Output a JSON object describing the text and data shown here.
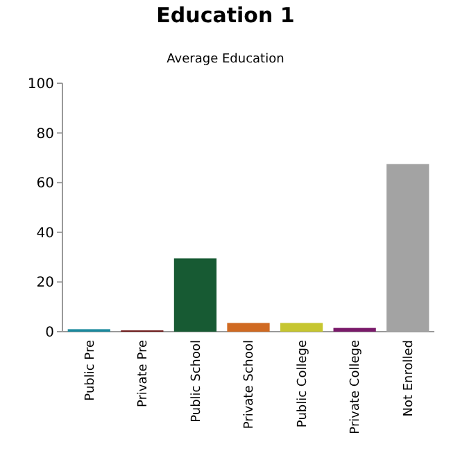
{
  "chart_data": {
    "type": "bar",
    "title": "Education 1",
    "subtitle": "Average Education",
    "categories": [
      "Public Pre",
      "Private Pre",
      "Public School",
      "Private School",
      "Public College",
      "Private College",
      "Not Enrolled"
    ],
    "values": [
      1,
      0.5,
      29.5,
      3.5,
      3.5,
      1.5,
      67.5
    ],
    "colors": [
      "#1a8a9e",
      "#6b0f0f",
      "#175a33",
      "#d06a22",
      "#c6c630",
      "#7a1a6a",
      "#a3a3a3"
    ],
    "ylim": [
      0,
      100
    ],
    "yticks": [
      0,
      20,
      40,
      60,
      80,
      100
    ],
    "grid": false
  }
}
